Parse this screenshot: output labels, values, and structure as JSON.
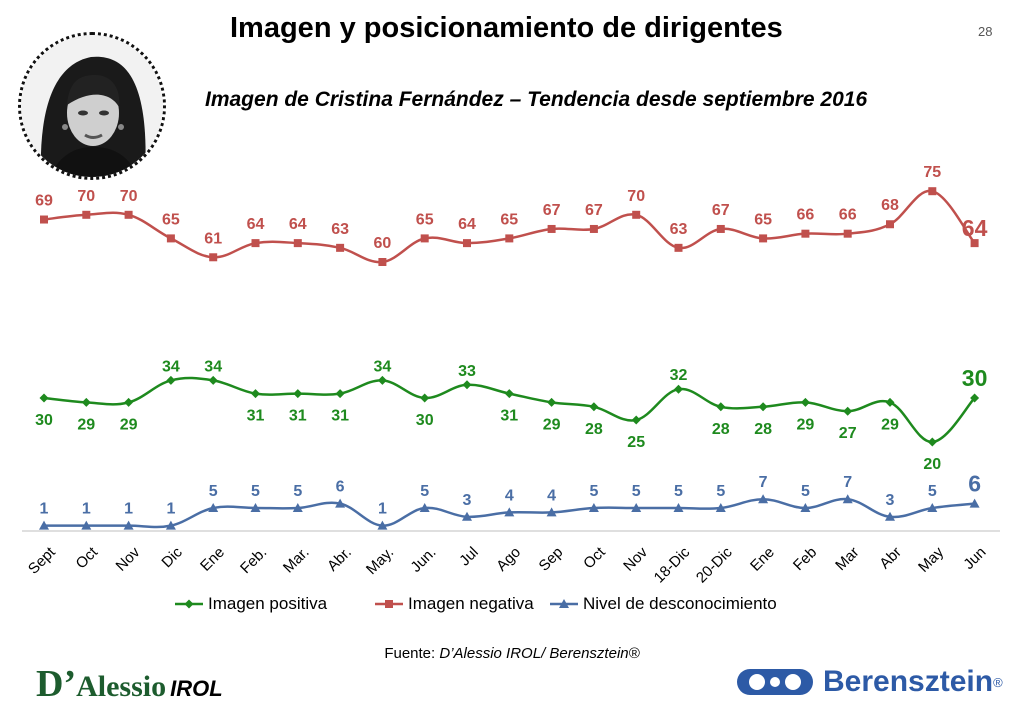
{
  "page": {
    "title": "Imagen y posicionamiento de dirigentes",
    "page_number": "28",
    "subtitle": "Imagen de Cristina Fernández – Tendencia desde septiembre 2016",
    "source_label": "Fuente: ",
    "source_value": "D’Alessio IROL/ Berensztein®",
    "logo_left_d": "D’",
    "logo_left_rest": "Alessio",
    "logo_left_irol": "IROL",
    "logo_right_text": "Berensztein",
    "logo_right_reg": "®"
  },
  "colors": {
    "positiva": "#1e8a1e",
    "negativa": "#c0504d",
    "desconocimiento": "#4a6ea5",
    "axis": "#bfbfbf"
  },
  "chart_data": {
    "type": "line",
    "title": "Imagen de Cristina Fernández – Tendencia desde septiembre 2016",
    "categories": [
      "Sept",
      "Oct",
      "Nov",
      "Dic",
      "Ene",
      "Feb.",
      "Mar.",
      "Abr.",
      "May.",
      "Jun.",
      "Jul",
      "Ago",
      "Sep",
      "Oct",
      "Nov",
      "18-Dic",
      "20-Dic",
      "Ene",
      "Feb",
      "Mar",
      "Abr",
      "May",
      "Jun"
    ],
    "ylim": [
      0,
      80
    ],
    "grid": false,
    "legend": "bottom",
    "series": [
      {
        "name": "Imagen positiva",
        "marker": "diamond",
        "color": "#1e8a1e",
        "values": [
          30,
          29,
          29,
          34,
          34,
          31,
          31,
          31,
          34,
          30,
          33,
          31,
          29,
          28,
          25,
          32,
          28,
          28,
          29,
          27,
          29,
          20,
          30
        ]
      },
      {
        "name": "Imagen negativa",
        "marker": "square",
        "color": "#c0504d",
        "values": [
          69,
          70,
          70,
          65,
          61,
          64,
          64,
          63,
          60,
          65,
          64,
          65,
          67,
          67,
          70,
          63,
          67,
          65,
          66,
          66,
          68,
          75,
          64
        ]
      },
      {
        "name": "Nivel de desconocimiento",
        "marker": "triangle",
        "color": "#4a6ea5",
        "values": [
          1,
          1,
          1,
          1,
          5,
          5,
          5,
          6,
          1,
          5,
          3,
          4,
          4,
          5,
          5,
          5,
          5,
          7,
          5,
          7,
          3,
          5,
          6
        ]
      }
    ]
  }
}
